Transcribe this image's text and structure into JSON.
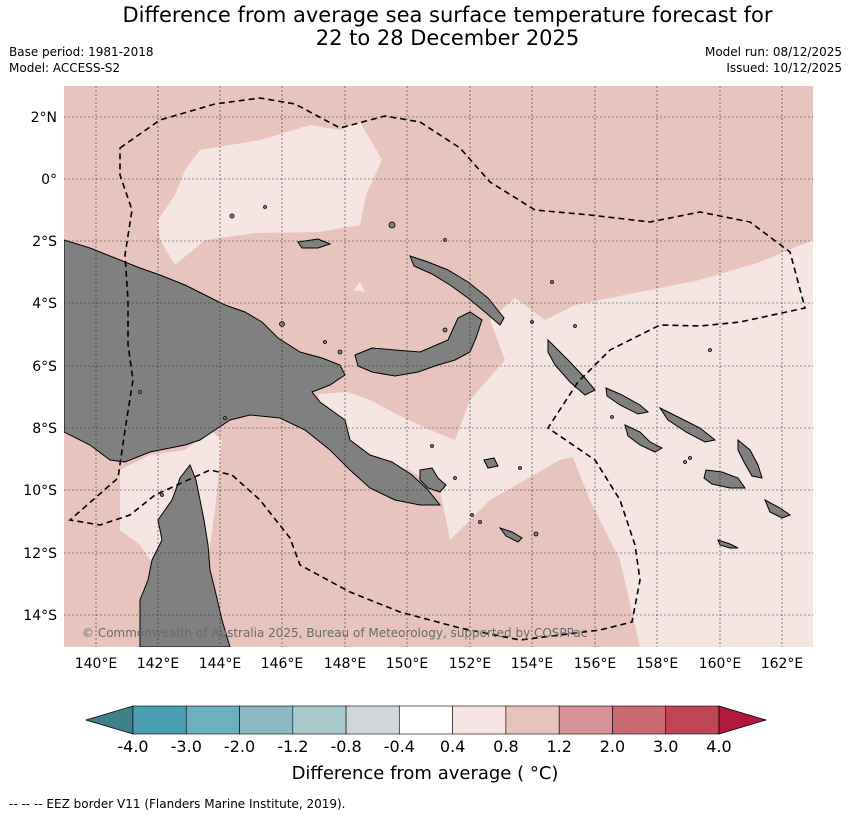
{
  "title_line1": "Difference from average sea surface temperature forecast for",
  "title_line2": "22 to 28 December 2025",
  "base_period": "Base period: 1981-2018",
  "model": "Model: ACCESS-S2",
  "model_run": "Model run: 08/12/2025",
  "issued": "Issued: 10/12/2025",
  "lon_labels": [
    "140°E",
    "142°E",
    "144°E",
    "146°E",
    "148°E",
    "150°E",
    "152°E",
    "154°E",
    "156°E",
    "158°E",
    "160°E",
    "162°E"
  ],
  "lat_labels": [
    "2°N",
    "0°",
    "2°S",
    "4°S",
    "6°S",
    "8°S",
    "10°S",
    "12°S",
    "14°S"
  ],
  "copyright": "© Commonwealth of Australia 2025, Bureau of Meteorology, supported by COSPPac",
  "colorbar": {
    "ticks": [
      "-4.0",
      "-3.0",
      "-2.0",
      "-1.2",
      "-0.8",
      "-0.4",
      "0.4",
      "0.8",
      "1.2",
      "2.0",
      "3.0",
      "4.0"
    ],
    "colors": [
      "#3f7f8a",
      "#4aa0b2",
      "#6cb0c0",
      "#8bb8c2",
      "#a8c8cb",
      "#d0d6d7",
      "#ffffff",
      "#f5e6e3",
      "#e8c4bf",
      "#d8929a",
      "#cc6a74",
      "#c04456",
      "#b01a3e"
    ],
    "label": "Difference from average ( °C)"
  },
  "legend_footnote": "--  --  -- EEZ border V11 (Flanders Marine Institute, 2019).",
  "colors": {
    "land": "#808080",
    "shade_08_12": "#e8c4bf",
    "shade_04_08": "#f5e6e3"
  }
}
